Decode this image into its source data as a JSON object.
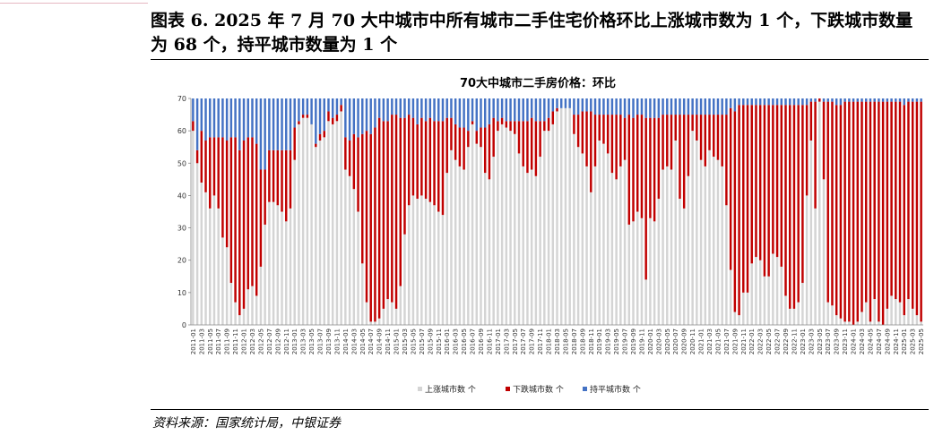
{
  "page": {
    "title": "图表 6. 2025 年 7 月 70 大中城市中所有城市二手住宅价格环比上涨城市数为 1 个，下跌城市数量为 68 个，持平城市数量为 1 个",
    "source": "资料来源：国家统计局，中银证券"
  },
  "colors": {
    "up": "#d4d4d4",
    "down": "#c00000",
    "flat": "#4472c4"
  },
  "chart_data": {
    "type": "bar",
    "stacked": true,
    "title": "70大中城市二手房价格：环比",
    "xlabel": "",
    "ylabel": "",
    "ylim": [
      0,
      70
    ],
    "yticks": [
      0,
      10,
      20,
      30,
      40,
      50,
      60,
      70
    ],
    "grid": false,
    "legend_position": "bottom",
    "start_month": "2011-01",
    "end_month": "2025-07",
    "tick_every_months": 2,
    "series": [
      {
        "name": "上涨城市数 个",
        "color": "#d4d4d4",
        "values": [
          60,
          50,
          44,
          41,
          36,
          40,
          36,
          27,
          24,
          13,
          7,
          3,
          5,
          11,
          12,
          9,
          18,
          31,
          38,
          38,
          37,
          35,
          32,
          36,
          51,
          62,
          64,
          64,
          62,
          55,
          57,
          58,
          63,
          62,
          63,
          66,
          48,
          46,
          42,
          35,
          19,
          7,
          1,
          1,
          2,
          5,
          8,
          7,
          5,
          12,
          28,
          37,
          40,
          39,
          40,
          39,
          38,
          37,
          35,
          34,
          47,
          54,
          51,
          49,
          48,
          55,
          62,
          56,
          55,
          47,
          45,
          52,
          60,
          62,
          61,
          60,
          59,
          53,
          49,
          47,
          48,
          46,
          52,
          60,
          60,
          62,
          66,
          67,
          67,
          67,
          59,
          55,
          53,
          49,
          41,
          49,
          57,
          56,
          53,
          47,
          45,
          49,
          51,
          31,
          32,
          35,
          33,
          14,
          33,
          32,
          39,
          48,
          49,
          48,
          57,
          39,
          36,
          46,
          60,
          57,
          51,
          49,
          54,
          52,
          51,
          49,
          37,
          17,
          4,
          3,
          10,
          10,
          19,
          21,
          20,
          15,
          15,
          22,
          21,
          18,
          9,
          5,
          5,
          7,
          13,
          40,
          57,
          36,
          69,
          45,
          7,
          6,
          3,
          2,
          1,
          1,
          0,
          1,
          4,
          7,
          1,
          8,
          1,
          0,
          5,
          9,
          8,
          7,
          3,
          8,
          5,
          3,
          1
        ]
      },
      {
        "name": "下跌城市数 个",
        "color": "#c00000",
        "values": [
          3,
          4,
          16,
          16,
          22,
          18,
          22,
          31,
          33,
          45,
          51,
          51,
          52,
          47,
          46,
          47,
          30,
          17,
          16,
          16,
          17,
          19,
          22,
          18,
          10,
          1,
          1,
          1,
          0,
          1,
          2,
          2,
          3,
          2,
          2,
          2,
          10,
          11,
          17,
          23,
          40,
          53,
          58,
          60,
          62,
          58,
          55,
          58,
          60,
          52,
          36,
          28,
          24,
          23,
          24,
          24,
          26,
          26,
          28,
          29,
          17,
          10,
          11,
          12,
          13,
          5,
          1,
          4,
          6,
          14,
          17,
          12,
          3,
          2,
          2,
          3,
          4,
          10,
          14,
          16,
          16,
          17,
          11,
          3,
          4,
          4,
          1,
          0,
          0,
          0,
          6,
          10,
          13,
          17,
          25,
          16,
          8,
          9,
          12,
          18,
          20,
          16,
          13,
          34,
          32,
          30,
          32,
          50,
          31,
          32,
          25,
          17,
          16,
          17,
          8,
          26,
          29,
          19,
          5,
          8,
          14,
          16,
          11,
          13,
          14,
          16,
          28,
          50,
          62,
          65,
          58,
          58,
          49,
          47,
          48,
          53,
          53,
          46,
          47,
          50,
          59,
          63,
          63,
          61,
          55,
          28,
          12,
          33,
          1,
          24,
          62,
          63,
          65,
          66,
          68,
          68,
          69,
          68,
          65,
          62,
          68,
          61,
          68,
          69,
          64,
          60,
          61,
          62,
          65,
          61,
          64,
          66,
          68
        ]
      },
      {
        "name": "持平城市数 个",
        "color": "#4472c4",
        "values": [
          7,
          16,
          10,
          13,
          12,
          12,
          12,
          12,
          13,
          12,
          12,
          16,
          13,
          12,
          12,
          14,
          22,
          22,
          16,
          16,
          16,
          16,
          16,
          16,
          9,
          7,
          5,
          5,
          8,
          14,
          11,
          10,
          4,
          6,
          5,
          2,
          12,
          13,
          11,
          12,
          11,
          10,
          11,
          9,
          6,
          7,
          7,
          5,
          5,
          6,
          6,
          5,
          6,
          8,
          6,
          7,
          6,
          7,
          7,
          7,
          6,
          6,
          8,
          9,
          9,
          10,
          7,
          10,
          9,
          9,
          8,
          6,
          7,
          6,
          7,
          7,
          7,
          7,
          7,
          7,
          6,
          7,
          7,
          7,
          6,
          4,
          3,
          3,
          3,
          3,
          5,
          5,
          4,
          4,
          4,
          5,
          5,
          5,
          5,
          5,
          5,
          5,
          6,
          5,
          6,
          5,
          5,
          6,
          6,
          6,
          6,
          5,
          5,
          5,
          5,
          5,
          5,
          5,
          5,
          5,
          5,
          5,
          5,
          5,
          5,
          5,
          5,
          3,
          4,
          2,
          2,
          2,
          2,
          2,
          2,
          2,
          2,
          2,
          2,
          2,
          2,
          2,
          2,
          2,
          2,
          2,
          1,
          1,
          0,
          1,
          1,
          1,
          2,
          2,
          1,
          1,
          1,
          1,
          1,
          1,
          1,
          1,
          1,
          1,
          1,
          1,
          1,
          1,
          2,
          1,
          1,
          1,
          1
        ]
      }
    ]
  }
}
